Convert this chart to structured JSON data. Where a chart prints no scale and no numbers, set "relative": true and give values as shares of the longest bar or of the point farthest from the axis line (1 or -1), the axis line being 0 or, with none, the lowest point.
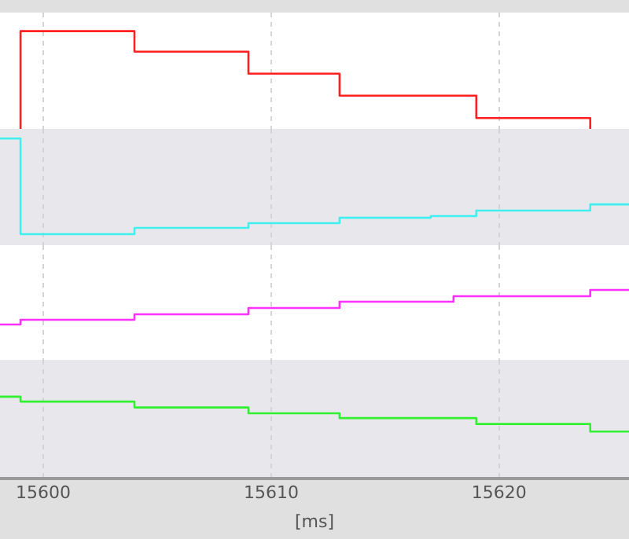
{
  "chart_data": [
    {
      "type": "step",
      "x": [
        15599,
        15599,
        15604,
        15609,
        15613,
        15619,
        15624
      ],
      "series": [
        {
          "color": "#ff2020",
          "values": [
            0,
            1,
            0.79,
            0.565,
            0.34,
            0.11,
            0
          ]
        }
      ],
      "xlim": [
        15598.1,
        15625.7
      ],
      "xticks": [
        15600,
        15610,
        15620
      ],
      "relative": true,
      "grid": "x",
      "tick_labels": false
    },
    {
      "type": "step",
      "x": [
        15598.1,
        15599,
        15604,
        15609,
        15613,
        15617,
        15619,
        15624,
        15625.7
      ],
      "series": [
        {
          "color": "#40f0f0",
          "values": [
            1,
            0.103,
            0.162,
            0.206,
            0.257,
            0.272,
            0.324,
            0.382,
            0.382
          ]
        }
      ],
      "xlim": [
        15598.1,
        15625.7
      ],
      "xticks": [
        15600,
        15610,
        15620
      ],
      "relative": true,
      "grid": "x",
      "tick_labels": false
    },
    {
      "type": "step",
      "x": [
        15598.1,
        15599,
        15604,
        15609,
        15613,
        15618,
        15624,
        15625.7
      ],
      "series": [
        {
          "color": "#ff30ff",
          "values": [
            0.506,
            0.573,
            0.652,
            0.742,
            0.831,
            0.91,
            1,
            1
          ]
        }
      ],
      "xlim": [
        15598.1,
        15625.7
      ],
      "xticks": [
        15600,
        15610,
        15620
      ],
      "relative": true,
      "grid": "x",
      "tick_labels": false
    },
    {
      "type": "step",
      "x": [
        15598.1,
        15599,
        15604,
        15609,
        15613,
        15619,
        15624,
        15625.7
      ],
      "series": [
        {
          "color": "#30f030",
          "values": [
            1,
            0.941,
            0.869,
            0.798,
            0.739,
            0.667,
            0.575,
            0.575
          ]
        }
      ],
      "xlim": [
        15598.1,
        15625.7
      ],
      "xticks": [
        15600,
        15610,
        15620
      ],
      "xlabel": "[ms]",
      "relative": true,
      "grid": "x",
      "tick_labels": "x"
    }
  ]
}
